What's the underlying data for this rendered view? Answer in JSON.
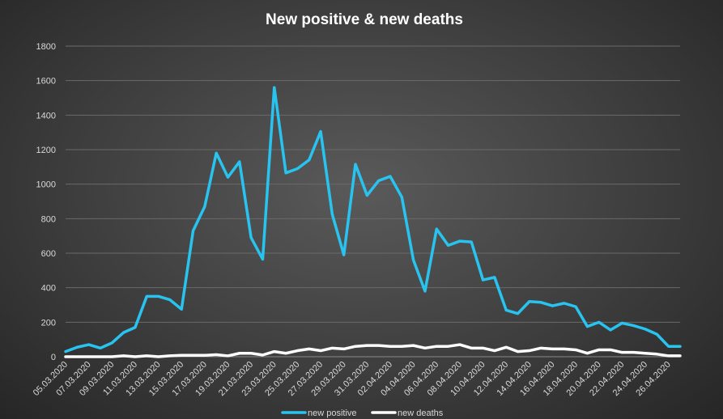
{
  "chart_data": {
    "type": "line",
    "title": "New positive  & new deaths",
    "xlabel": "",
    "ylabel": "",
    "ylim": [
      0,
      1800
    ],
    "yticks": [
      0,
      200,
      400,
      600,
      800,
      1000,
      1200,
      1400,
      1600,
      1800
    ],
    "grid": true,
    "legend_position": "bottom",
    "x": [
      "05.03.2020",
      "06.03.2020",
      "07.03.2020",
      "08.03.2020",
      "09.03.2020",
      "10.03.2020",
      "11.03.2020",
      "12.03.2020",
      "13.03.2020",
      "14.03.2020",
      "15.03.2020",
      "16.03.2020",
      "17.03.2020",
      "18.03.2020",
      "19.03.2020",
      "20.03.2020",
      "21.03.2020",
      "22.03.2020",
      "23.03.2020",
      "24.03.2020",
      "25.03.2020",
      "26.03.2020",
      "27.03.2020",
      "28.03.2020",
      "29.03.2020",
      "30.03.2020",
      "31.03.2020",
      "01.04.2020",
      "02.04.2020",
      "03.04.2020",
      "04.04.2020",
      "05.04.2020",
      "06.04.2020",
      "07.04.2020",
      "08.04.2020",
      "09.04.2020",
      "10.04.2020",
      "11.04.2020",
      "12.04.2020",
      "13.04.2020",
      "14.04.2020",
      "15.04.2020",
      "16.04.2020",
      "17.04.2020",
      "18.04.2020",
      "19.04.2020",
      "20.04.2020",
      "21.04.2020",
      "22.04.2020",
      "23.04.2020",
      "24.04.2020",
      "25.04.2020",
      "26.04.2020",
      "27.04.2020"
    ],
    "xtick_labels": [
      "05.03.2020",
      "07.03.2020",
      "09.03.2020",
      "11.03.2020",
      "13.03.2020",
      "15.03.2020",
      "17.03.2020",
      "19.03.2020",
      "21.03.2020",
      "23.03.2020",
      "25.03.2020",
      "27.03.2020",
      "29.03.2020",
      "31.03.2020",
      "02.04.2020",
      "04.04.2020",
      "06.04.2020",
      "08.04.2020",
      "10.04.2020",
      "12.04.2020",
      "14.04.2020",
      "16.04.2020",
      "18.04.2020",
      "20.04.2020",
      "22.04.2020",
      "24.04.2020",
      "26.04.2020"
    ],
    "series": [
      {
        "name": "new  positive",
        "color": "#29c3f0",
        "values": [
          30,
          55,
          70,
          50,
          80,
          140,
          170,
          350,
          350,
          330,
          275,
          730,
          870,
          1180,
          1040,
          1130,
          690,
          565,
          1560,
          1065,
          1090,
          1140,
          1305,
          825,
          590,
          1115,
          935,
          1020,
          1045,
          925,
          560,
          380,
          740,
          645,
          670,
          665,
          445,
          460,
          270,
          250,
          320,
          315,
          295,
          310,
          290,
          175,
          200,
          155,
          195,
          180,
          160,
          130,
          60,
          60
        ]
      },
      {
        "name": "new  deaths",
        "color": "#ffffff",
        "values": [
          0,
          0,
          0,
          0,
          0,
          5,
          0,
          5,
          0,
          5,
          8,
          8,
          8,
          12,
          5,
          20,
          20,
          10,
          30,
          20,
          35,
          45,
          35,
          50,
          45,
          60,
          65,
          65,
          60,
          60,
          65,
          50,
          60,
          60,
          70,
          50,
          50,
          35,
          55,
          30,
          35,
          50,
          45,
          45,
          40,
          20,
          40,
          40,
          25,
          25,
          20,
          15,
          5,
          5
        ]
      }
    ]
  }
}
